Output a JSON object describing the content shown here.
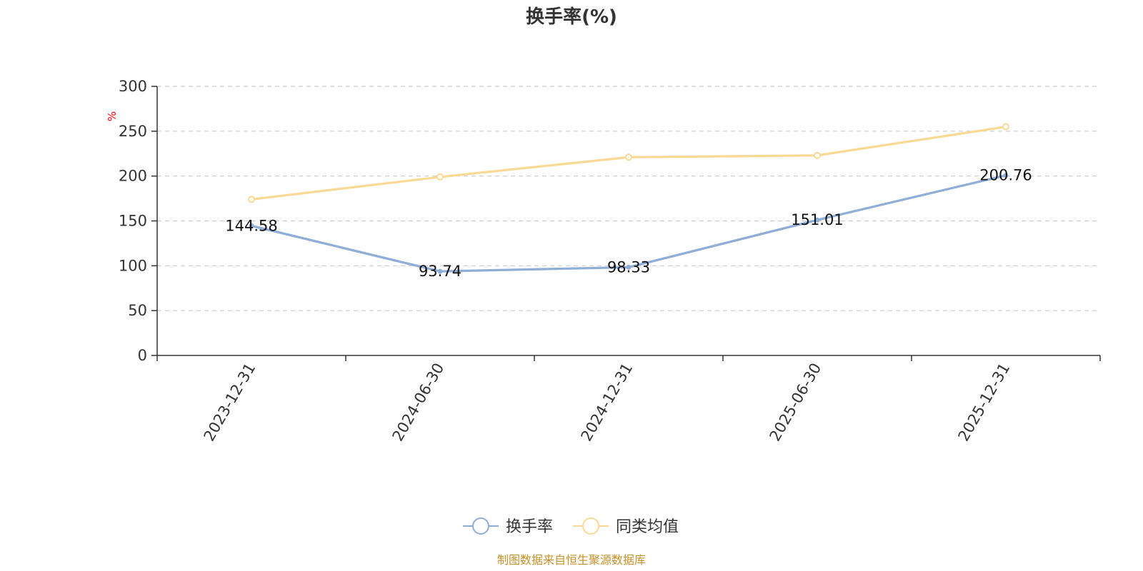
{
  "chart_data": {
    "type": "line",
    "title": "换手率(%)",
    "ylabel": "%",
    "xlabel": "",
    "ylim": [
      0,
      300
    ],
    "yticks": [
      0,
      50,
      100,
      150,
      200,
      250,
      300
    ],
    "categories": [
      "2023-12-31",
      "2024-06-30",
      "2024-12-31",
      "2025-06-30",
      "2025-12-31"
    ],
    "series": [
      {
        "name": "换手率",
        "color": "#8eaed8",
        "values": [
          144.58,
          93.74,
          98.33,
          151.01,
          200.76
        ],
        "labels": [
          "144.58",
          "93.74",
          "98.33",
          "151.01",
          "200.76"
        ]
      },
      {
        "name": "同类均值",
        "color": "#fad994",
        "values": [
          174,
          199,
          221,
          223,
          255
        ]
      }
    ],
    "grid": true,
    "legend_position": "bottom-center"
  },
  "source": "制图数据来自恒生聚源数据库"
}
